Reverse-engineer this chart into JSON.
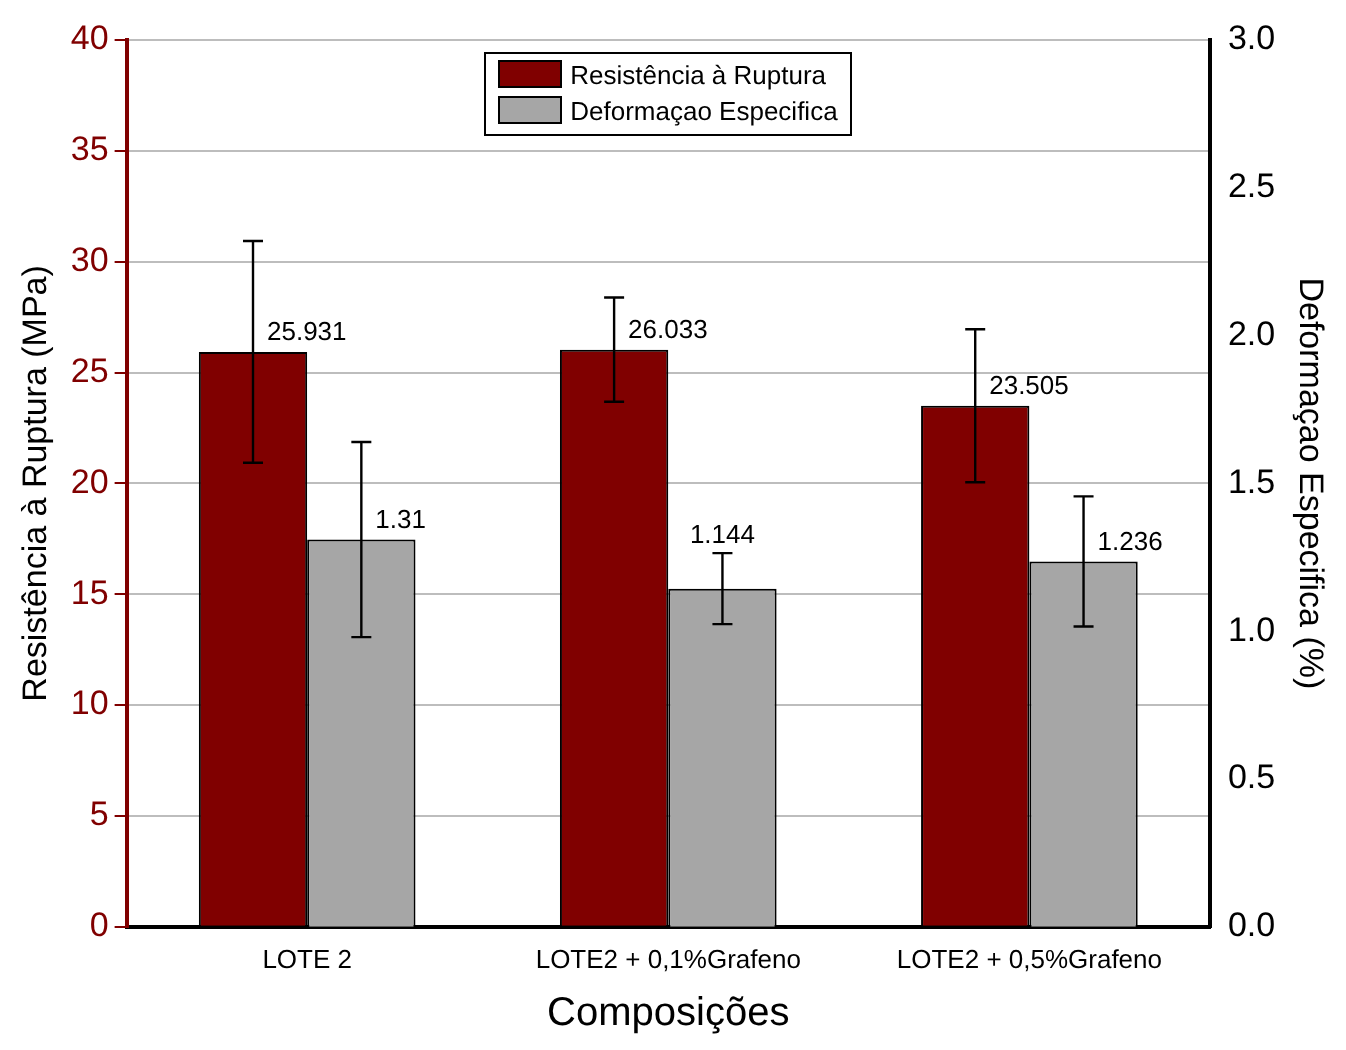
{
  "chart_data": {
    "type": "bar",
    "xlabel": "Composições",
    "ylabel": "Resistência à Ruptura (MPa)",
    "y2label": "Deformaçao Especifica (%)",
    "categories": [
      "LOTE 2",
      "LOTE2 + 0,1%Grafeno",
      "LOTE2 + 0,5%Grafeno"
    ],
    "series": [
      {
        "name": "Resistência à Ruptura",
        "color": "#800000",
        "values": [
          25.931,
          26.033,
          23.505
        ],
        "errors": [
          5.0,
          2.35,
          3.45
        ]
      },
      {
        "name": "Deformaçao Especifica",
        "color": "#a6a6a6",
        "values": [
          1.31,
          1.144,
          1.236
        ],
        "errors": [
          0.33,
          0.12,
          0.22
        ],
        "axis": "y2"
      }
    ],
    "ylim": [
      0,
      40
    ],
    "yticks": [
      0,
      5,
      10,
      15,
      20,
      25,
      30,
      35,
      40
    ],
    "y2lim": [
      0,
      3.0
    ],
    "y2ticks": [
      {
        "value": 0,
        "label": "0.0"
      },
      0.5,
      {
        "value": 1,
        "label": "1.0"
      },
      1.5,
      {
        "value": 2,
        "label": "2.0"
      },
      2.5,
      {
        "value": 3,
        "label": "3.0"
      }
    ],
    "grid": "y",
    "legend": "top",
    "data_labels": true
  }
}
